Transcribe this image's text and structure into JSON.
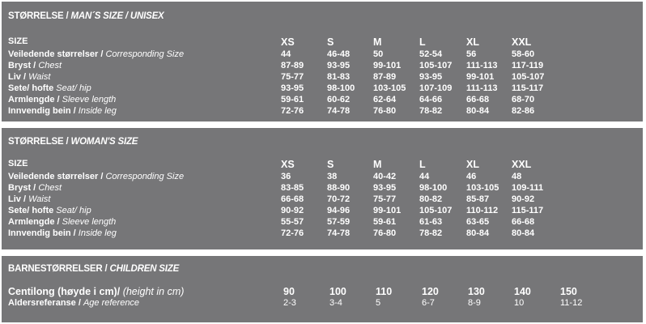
{
  "men": {
    "title_no": "STØRRELSE /",
    "title_en": "MAN´S SIZE  / UNISEX",
    "rows": [
      {
        "no": "SIZE",
        "en": "",
        "values": [
          "XS",
          "S",
          "M",
          "L",
          "XL",
          "XXL"
        ]
      },
      {
        "no": "Veiledende størrelser /",
        "en": "Corresponding Size",
        "values": [
          "44",
          "46-48",
          "50",
          "52-54",
          "56",
          "58-60"
        ]
      },
      {
        "no": "Bryst /",
        "en": "Chest",
        "values": [
          "87-89",
          "93-95",
          "99-101",
          "105-107",
          "111-113",
          "117-119"
        ]
      },
      {
        "no": "Liv /",
        "en": "Waist",
        "values": [
          "75-77",
          "81-83",
          "87-89",
          "93-95",
          "99-101",
          "105-107"
        ]
      },
      {
        "no": "Sete/ hofte",
        "en": "Seat/ hip",
        "values": [
          "93-95",
          "98-100",
          "103-105",
          "107-109",
          "111-113",
          "115-117"
        ]
      },
      {
        "no": "Armlengde /",
        "en": "Sleeve length",
        "values": [
          "59-61",
          "60-62",
          "62-64",
          "64-66",
          "66-68",
          "68-70"
        ]
      },
      {
        "no": "Innvendig bein /",
        "en": "Inside leg",
        "values": [
          "72-76",
          "74-78",
          "76-80",
          "78-82",
          "80-84",
          "82-86"
        ]
      }
    ]
  },
  "women": {
    "title_no": "STØRRELSE /",
    "title_en": "WOMAN'S SIZE",
    "rows": [
      {
        "no": "SIZE",
        "en": "",
        "values": [
          "XS",
          "S",
          "M",
          "L",
          "XL",
          "XXL"
        ]
      },
      {
        "no": "Veiledende størrelser /",
        "en": "Corresponding Size",
        "values": [
          "36",
          "38",
          "40-42",
          "44",
          "46",
          "48"
        ]
      },
      {
        "no": "Bryst /",
        "en": "Chest",
        "values": [
          "83-85",
          "88-90",
          "93-95",
          "98-100",
          "103-105",
          "109-111"
        ]
      },
      {
        "no": "Liv /",
        "en": "Waist",
        "values": [
          "66-68",
          "70-72",
          "75-77",
          "80-82",
          "85-87",
          "90-92"
        ]
      },
      {
        "no": "Sete/ hofte",
        "en": "Seat/ hip",
        "values": [
          "90-92",
          "94-96",
          "99-101",
          "105-107",
          "110-112",
          "115-117"
        ]
      },
      {
        "no": "Armlengde /",
        "en": "Sleeve length",
        "values": [
          "55-57",
          "57-59",
          "59-61",
          "61-63",
          "63-65",
          "66-68"
        ]
      },
      {
        "no": "Innvendig bein /",
        "en": "Inside leg",
        "values": [
          "72-76",
          "74-78",
          "76-80",
          "78-82",
          "80-84",
          "80-84"
        ]
      }
    ]
  },
  "children": {
    "title_no": "BARNESTØRRELSER /",
    "title_en": "CHILDREN SIZE",
    "rows": [
      {
        "no": "Centilong (høyde i cm)/",
        "en": "(height in cm)",
        "values": [
          "90",
          "100",
          "110",
          "120",
          "130",
          "140",
          "150"
        ]
      },
      {
        "no": "Aldersreferanse /",
        "en": "Age reference",
        "values": [
          "2-3",
          "3-4",
          "5",
          "6-7",
          "8-9",
          "10",
          "11-12"
        ]
      }
    ]
  }
}
